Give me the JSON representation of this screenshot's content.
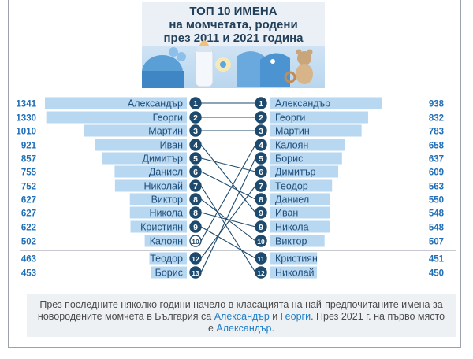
{
  "header": {
    "title_lines": [
      "ТОП 10 ИМЕНА",
      "на момчетата, родени",
      "през 2011 и 2021 година"
    ]
  },
  "chart_data": {
    "type": "bar",
    "title": "ТОП 10 ИМЕНА на момчетата, родени през 2011 и 2021 година",
    "left_year": "2011",
    "right_year": "2021",
    "left": [
      {
        "rank": "1",
        "name": "Александър",
        "value": 1341
      },
      {
        "rank": "2",
        "name": "Георги",
        "value": 1330
      },
      {
        "rank": "3",
        "name": "Мартин",
        "value": 1010
      },
      {
        "rank": "4",
        "name": "Иван",
        "value": 921
      },
      {
        "rank": "5",
        "name": "Димитър",
        "value": 857
      },
      {
        "rank": "6",
        "name": "Даниел",
        "value": 755
      },
      {
        "rank": "7",
        "name": "Николай",
        "value": 752
      },
      {
        "rank": "8",
        "name": "Виктор",
        "value": 627
      },
      {
        "rank": "8",
        "name": "Никола",
        "value": 627
      },
      {
        "rank": "9",
        "name": "Кристиян",
        "value": 622
      },
      {
        "rank": "10",
        "name": "Калоян",
        "value": 502
      },
      {
        "rank": "12",
        "name": "Теодор",
        "value": 463
      },
      {
        "rank": "13",
        "name": "Борис",
        "value": 453
      }
    ],
    "right": [
      {
        "rank": "1",
        "name": "Александър",
        "value": 938
      },
      {
        "rank": "2",
        "name": "Георги",
        "value": 832
      },
      {
        "rank": "3",
        "name": "Мартин",
        "value": 783
      },
      {
        "rank": "4",
        "name": "Калоян",
        "value": 658
      },
      {
        "rank": "5",
        "name": "Борис",
        "value": 637
      },
      {
        "rank": "6",
        "name": "Димитър",
        "value": 609
      },
      {
        "rank": "7",
        "name": "Теодор",
        "value": 563
      },
      {
        "rank": "8",
        "name": "Даниел",
        "value": 550
      },
      {
        "rank": "9",
        "name": "Иван",
        "value": 548
      },
      {
        "rank": "9",
        "name": "Никола",
        "value": 548
      },
      {
        "rank": "10",
        "name": "Виктор",
        "value": 507
      },
      {
        "rank": "11",
        "name": "Кристиян",
        "value": 451
      },
      {
        "rank": "12",
        "name": "Николай",
        "value": 450
      }
    ],
    "colors": {
      "bar": "#b8d7f1",
      "bar_text": "#1e4f7a",
      "value_text": "#1f6fb8",
      "badge_fill": "#1e4a6e",
      "badge_light": "#ffffff",
      "badge_text_light": "#1e4a6e",
      "line": "#1e4a6e",
      "separator": "#8d96a0"
    },
    "light_badges": {
      "left": [
        "10"
      ],
      "right": [
        "12"
      ]
    }
  },
  "caption": {
    "part1": "През последните няколко години начело в класацията на най-предпочитаните имена за новородените момчета в България са ",
    "name1": "Александър",
    "and": " и ",
    "name2": "Георги",
    "part2": ". През 2021 г. на първо място е ",
    "name3": "Александър",
    "end": "."
  }
}
